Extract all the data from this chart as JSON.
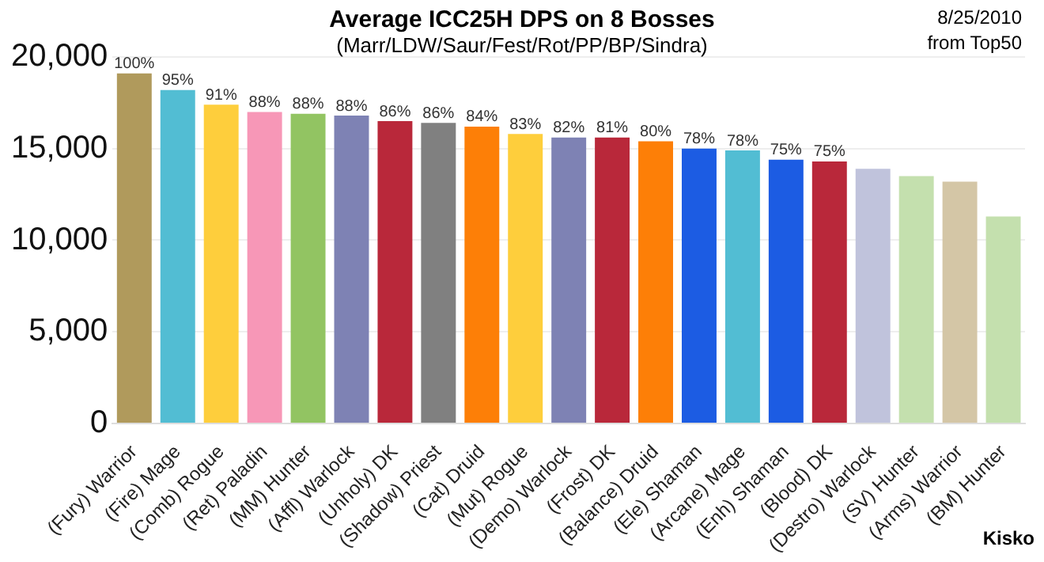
{
  "chart_data": {
    "type": "bar",
    "title": "Average ICC25H DPS on 8 Bosses",
    "subtitle": "(Marr/LDW/Saur/Fest/Rot/PP/BP/Sindra)",
    "annotations": [
      "8/25/2010",
      "from Top50",
      "Kisko",
      {
        "text": "100%",
        "x": "(Fury) Warrior",
        "y": 19100
      },
      {
        "text": "95%",
        "x": "(Fire) Mage",
        "y": 18200
      },
      {
        "text": "91%",
        "x": "(Comb) Rogue",
        "y": 17400
      },
      {
        "text": "88%",
        "x": "(Ret) Paladin",
        "y": 17000
      },
      {
        "text": "88%",
        "x": "(MM) Hunter",
        "y": 16900
      },
      {
        "text": "88%",
        "x": "(Affl) Warlock",
        "y": 16800
      },
      {
        "text": "86%",
        "x": "(Unholy) DK",
        "y": 16500
      },
      {
        "text": "86%",
        "x": "(Shadow) Priest",
        "y": 16400
      },
      {
        "text": "84%",
        "x": "(Cat) Druid",
        "y": 16200
      },
      {
        "text": "83%",
        "x": "(Mut) Rogue",
        "y": 15800
      },
      {
        "text": "82%",
        "x": "(Demo) Warlock",
        "y": 15600
      },
      {
        "text": "81%",
        "x": "(Frost) DK",
        "y": 15600
      },
      {
        "text": "80%",
        "x": "(Balance) Druid",
        "y": 15400
      },
      {
        "text": "78%",
        "x": "(Ele) Shaman",
        "y": 15000
      },
      {
        "text": "78%",
        "x": "(Arcane) Mage",
        "y": 14900
      },
      {
        "text": "75%",
        "x": "(Enh) Shaman",
        "y": 14400
      },
      {
        "text": "75%",
        "x": "(Blood) DK",
        "y": 14300
      }
    ],
    "categories": [
      "(Fury) Warrior",
      "(Fire) Mage",
      "(Comb) Rogue",
      "(Ret) Paladin",
      "(MM) Hunter",
      "(Affl) Warlock",
      "(Unholy) DK",
      "(Shadow) Priest",
      "(Cat) Druid",
      "(Mut) Rogue",
      "(Demo) Warlock",
      "(Frost) DK",
      "(Balance) Druid",
      "(Ele) Shaman",
      "(Arcane) Mage",
      "(Enh) Shaman",
      "(Blood) DK",
      "(Destro) Warlock",
      "(SV) Hunter",
      "(Arms) Warrior",
      "(BM) Hunter"
    ],
    "values": [
      19100,
      18200,
      17400,
      17000,
      16900,
      16800,
      16500,
      16400,
      16200,
      15800,
      15600,
      15600,
      15400,
      15000,
      14900,
      14400,
      14300,
      13900,
      13500,
      13200,
      11300
    ],
    "colors": [
      "#b09a5c",
      "#52bdd3",
      "#fece3c",
      "#f797b7",
      "#92c462",
      "#7e82b4",
      "#b9283a",
      "#808080",
      "#fd7f07",
      "#fece3c",
      "#7e82b4",
      "#b9283a",
      "#fd7f07",
      "#1c5ce3",
      "#52bdd3",
      "#1c5ce3",
      "#b9283a",
      "#c0c3dc",
      "#c4e0ae",
      "#d4c6a6",
      "#c4e0ae"
    ],
    "ylim": [
      0,
      20000
    ],
    "yticks": [
      {
        "value": 0,
        "label": "0"
      },
      {
        "value": 5000,
        "label": "5,000"
      },
      {
        "value": 10000,
        "label": "10,000"
      },
      {
        "value": 15000,
        "label": "15,000"
      },
      {
        "value": 20000,
        "label": "20,000"
      }
    ],
    "grid": "y",
    "legend": false
  }
}
